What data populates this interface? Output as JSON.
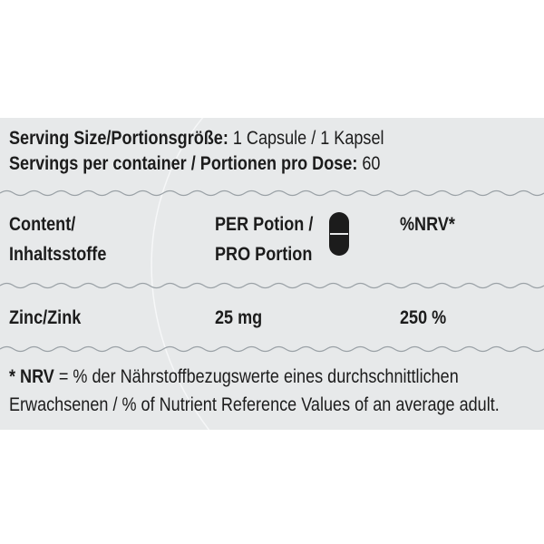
{
  "serving": {
    "size_label": "Serving Size/Portionsgröße:",
    "size_value": " 1 Capsule / 1 Kapsel",
    "per_container_label": "Servings per container / Portionen pro Dose:",
    "per_container_value": " 60"
  },
  "table": {
    "headers": {
      "content_line1": "Content/",
      "content_line2": "Inhaltsstoffe",
      "per_line1": "PER Potion /",
      "per_line2": "PRO Portion",
      "nrv": "%NRV*"
    },
    "rows": [
      {
        "name": "Zinc/Zink",
        "amount": "25 mg",
        "nrv": "250 %"
      }
    ]
  },
  "footnote": {
    "marker": "* NRV",
    "line1_rest": " = % der Nährstoffbezugswerte eines durchschnittlichen",
    "line2": "Erwachsenen / % of Nutrient Reference Values of an average adult."
  },
  "icons": {
    "capsule": "capsule-icon",
    "divider": "wavy-divider"
  },
  "colors": {
    "panel_background": "#e7e9ea",
    "text": "#1c1c1c",
    "divider": "#9aa1a6"
  }
}
